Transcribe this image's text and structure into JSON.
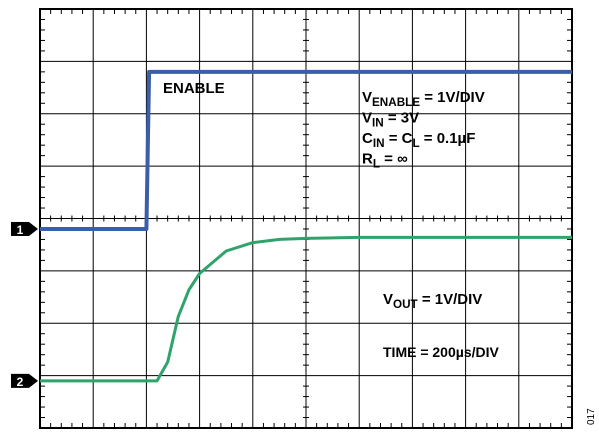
{
  "chart_data": {
    "type": "line",
    "x": [
      0,
      1,
      2,
      2.05,
      2.1,
      2.2,
      2.4,
      2.6,
      2.8,
      3.0,
      3.5,
      4.0,
      4.5,
      5.0,
      6.0,
      7.0,
      8.0,
      9.0,
      10.0
    ],
    "series": [
      {
        "name": "ENABLE",
        "color": "#3a5ea8",
        "reference_marker": "1",
        "values": [
          0,
          0,
          0,
          3,
          3,
          3,
          3,
          3,
          3,
          3,
          3,
          3,
          3,
          3,
          3,
          3,
          3,
          3,
          3
        ]
      },
      {
        "name": "",
        "color": "#2fa36b",
        "reference_marker": "2",
        "values": [
          0,
          0,
          0,
          0,
          0,
          0,
          0.36,
          1.23,
          1.74,
          2.05,
          2.48,
          2.64,
          2.7,
          2.72,
          2.74,
          2.74,
          2.74,
          2.74,
          2.74
        ]
      }
    ],
    "grid": true,
    "divisions": {
      "x": 10,
      "y": 8
    },
    "annotations": {
      "enable_label": "ENABLE",
      "conditions": [
        {
          "main": "V",
          "sub": "ENABLE",
          "rest": " = 1V/DIV"
        },
        {
          "main": "V",
          "sub": "IN",
          "rest": " = 3V"
        },
        {
          "main": "C",
          "sub": "IN",
          "rest": " = C",
          "sub2": "L",
          "rest2": " = 0.1µF"
        },
        {
          "main": "R",
          "sub": "L",
          "rest": " = ∞"
        }
      ],
      "vout_scale": {
        "main": "V",
        "sub": "OUT",
        "rest": " = 1V/DIV"
      },
      "time_scale": "TIME = 200µs/DIV"
    }
  },
  "markers": [
    "1",
    "2"
  ],
  "figure_id": "017"
}
